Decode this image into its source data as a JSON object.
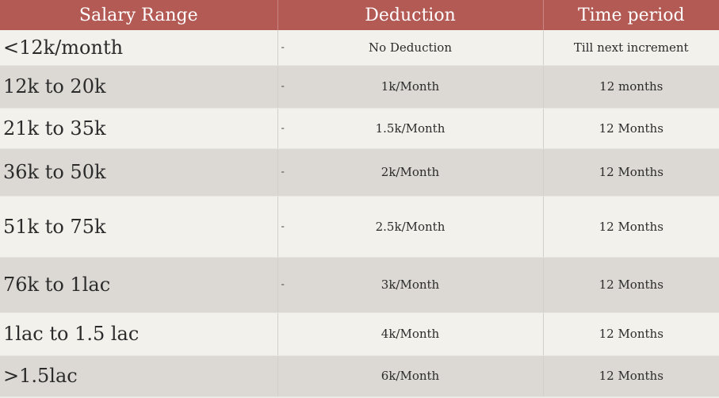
{
  "table": {
    "headers": [
      "Salary Range",
      "Deduction",
      "Time period"
    ],
    "rows": [
      {
        "range": "<12k/month",
        "dash": "-",
        "deduction": "No Deduction",
        "period": "Till next increment"
      },
      {
        "range": "12k to 20k",
        "dash": "-",
        "deduction": "1k/Month",
        "period": "12 months"
      },
      {
        "range": "21k to 35k",
        "dash": "-",
        "deduction": "1.5k/Month",
        "period": "12 Months"
      },
      {
        "range": "36k to 50k",
        "dash": "-",
        "deduction": "2k/Month",
        "period": "12 Months"
      },
      {
        "range": "51k to 75k",
        "dash": "-",
        "deduction": "2.5k/Month",
        "period": "12 Months"
      },
      {
        "range": "76k to 1lac",
        "dash": "-",
        "deduction": "3k/Month",
        "period": "12 Months"
      },
      {
        "range": "1lac to 1.5 lac",
        "dash": "",
        "deduction": "4k/Month",
        "period": "12 Months"
      },
      {
        "range": ">1.5lac",
        "dash": "",
        "deduction": "6k/Month",
        "period": "12 Months"
      }
    ]
  },
  "colors": {
    "header_bg": "#b35a55",
    "header_text": "#ffffff",
    "row_light": "#f3f1ec",
    "row_dark": "#dcd9d4"
  }
}
